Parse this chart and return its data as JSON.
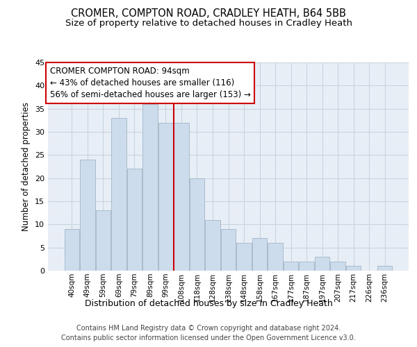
{
  "title1": "CROMER, COMPTON ROAD, CRADLEY HEATH, B64 5BB",
  "title2": "Size of property relative to detached houses in Cradley Heath",
  "xlabel": "Distribution of detached houses by size in Cradley Heath",
  "ylabel": "Number of detached properties",
  "footer1": "Contains HM Land Registry data © Crown copyright and database right 2024.",
  "footer2": "Contains public sector information licensed under the Open Government Licence v3.0.",
  "annotation_line1": "CROMER COMPTON ROAD: 94sqm",
  "annotation_line2": "← 43% of detached houses are smaller (116)",
  "annotation_line3": "56% of semi-detached houses are larger (153) →",
  "bar_color": "#ccdcec",
  "bar_edge_color": "#aabccc",
  "vline_color": "#cc0000",
  "vline_x": 6.5,
  "categories": [
    "40sqm",
    "49sqm",
    "59sqm",
    "69sqm",
    "79sqm",
    "89sqm",
    "99sqm",
    "108sqm",
    "118sqm",
    "128sqm",
    "138sqm",
    "148sqm",
    "158sqm",
    "167sqm",
    "177sqm",
    "187sqm",
    "197sqm",
    "207sqm",
    "217sqm",
    "226sqm",
    "236sqm"
  ],
  "values": [
    9,
    24,
    13,
    33,
    22,
    36,
    32,
    32,
    20,
    11,
    9,
    6,
    7,
    6,
    2,
    2,
    3,
    2,
    1,
    0,
    1
  ],
  "ylim": [
    0,
    45
  ],
  "yticks": [
    0,
    5,
    10,
    15,
    20,
    25,
    30,
    35,
    40,
    45
  ],
  "grid_color": "#c8d4e0",
  "bg_color": "#e8eef6",
  "title1_fontsize": 10.5,
  "title2_fontsize": 9.5,
  "xlabel_fontsize": 9,
  "ylabel_fontsize": 8.5,
  "tick_fontsize": 8,
  "xtick_fontsize": 7.5,
  "footer_fontsize": 7,
  "annotation_fontsize": 8.5,
  "box_facecolor": "#ffffff",
  "box_edgecolor": "#cc0000"
}
